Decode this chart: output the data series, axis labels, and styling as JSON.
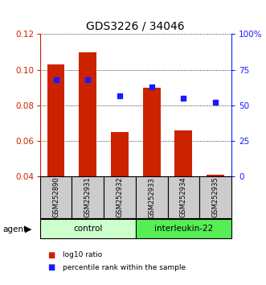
{
  "title": "GDS3226 / 34046",
  "samples": [
    "GSM252890",
    "GSM252931",
    "GSM252932",
    "GSM252933",
    "GSM252934",
    "GSM252935"
  ],
  "bar_values": [
    0.103,
    0.11,
    0.065,
    0.09,
    0.066,
    0.041
  ],
  "percentile_values": [
    68,
    68,
    57,
    63,
    55,
    52
  ],
  "ymin": 0.04,
  "ymax": 0.12,
  "y2min": 0,
  "y2max": 100,
  "yticks": [
    0.04,
    0.06,
    0.08,
    0.1,
    0.12
  ],
  "y2ticks": [
    0,
    25,
    50,
    75,
    100
  ],
  "y2ticklabels": [
    "0",
    "25",
    "50",
    "75",
    "100%"
  ],
  "bar_color": "#cc2200",
  "point_color": "#1a1aff",
  "bar_bottom": 0.04,
  "bar_width": 0.55,
  "groups": [
    {
      "label": "control",
      "indices": [
        0,
        1,
        2
      ],
      "color": "#ccffcc"
    },
    {
      "label": "interleukin-22",
      "indices": [
        3,
        4,
        5
      ],
      "color": "#55ee55"
    }
  ],
  "sample_box_color": "#cccccc",
  "agent_label": "agent",
  "legend_items": [
    {
      "color": "#cc2200",
      "label": "log10 ratio"
    },
    {
      "color": "#1a1aff",
      "label": "percentile rank within the sample"
    }
  ],
  "left_axis_color": "#cc2200",
  "right_axis_color": "#1a1aff",
  "ytick_fontsize": 7.5,
  "title_fontsize": 10
}
